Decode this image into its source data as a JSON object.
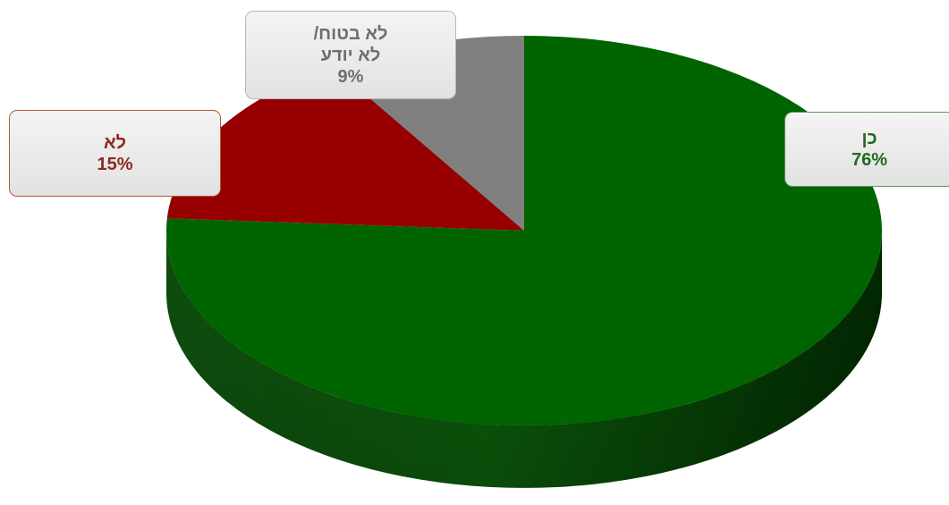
{
  "chart_data": {
    "type": "pie",
    "style": "3d",
    "slices": [
      {
        "label": "כן",
        "value": 76,
        "value_label": "76%",
        "color": "#006400"
      },
      {
        "label": "לא",
        "value": 15,
        "value_label": "15%",
        "color": "#960000"
      },
      {
        "label_lines": [
          "לא בטוח/",
          "לא יודע"
        ],
        "value": 9,
        "value_label": "9%",
        "color": "#808080"
      }
    ],
    "text_colors": {
      "yes": "#1f6b1f",
      "no": "#8b2a1a",
      "unsure": "#6e6e6e"
    }
  }
}
